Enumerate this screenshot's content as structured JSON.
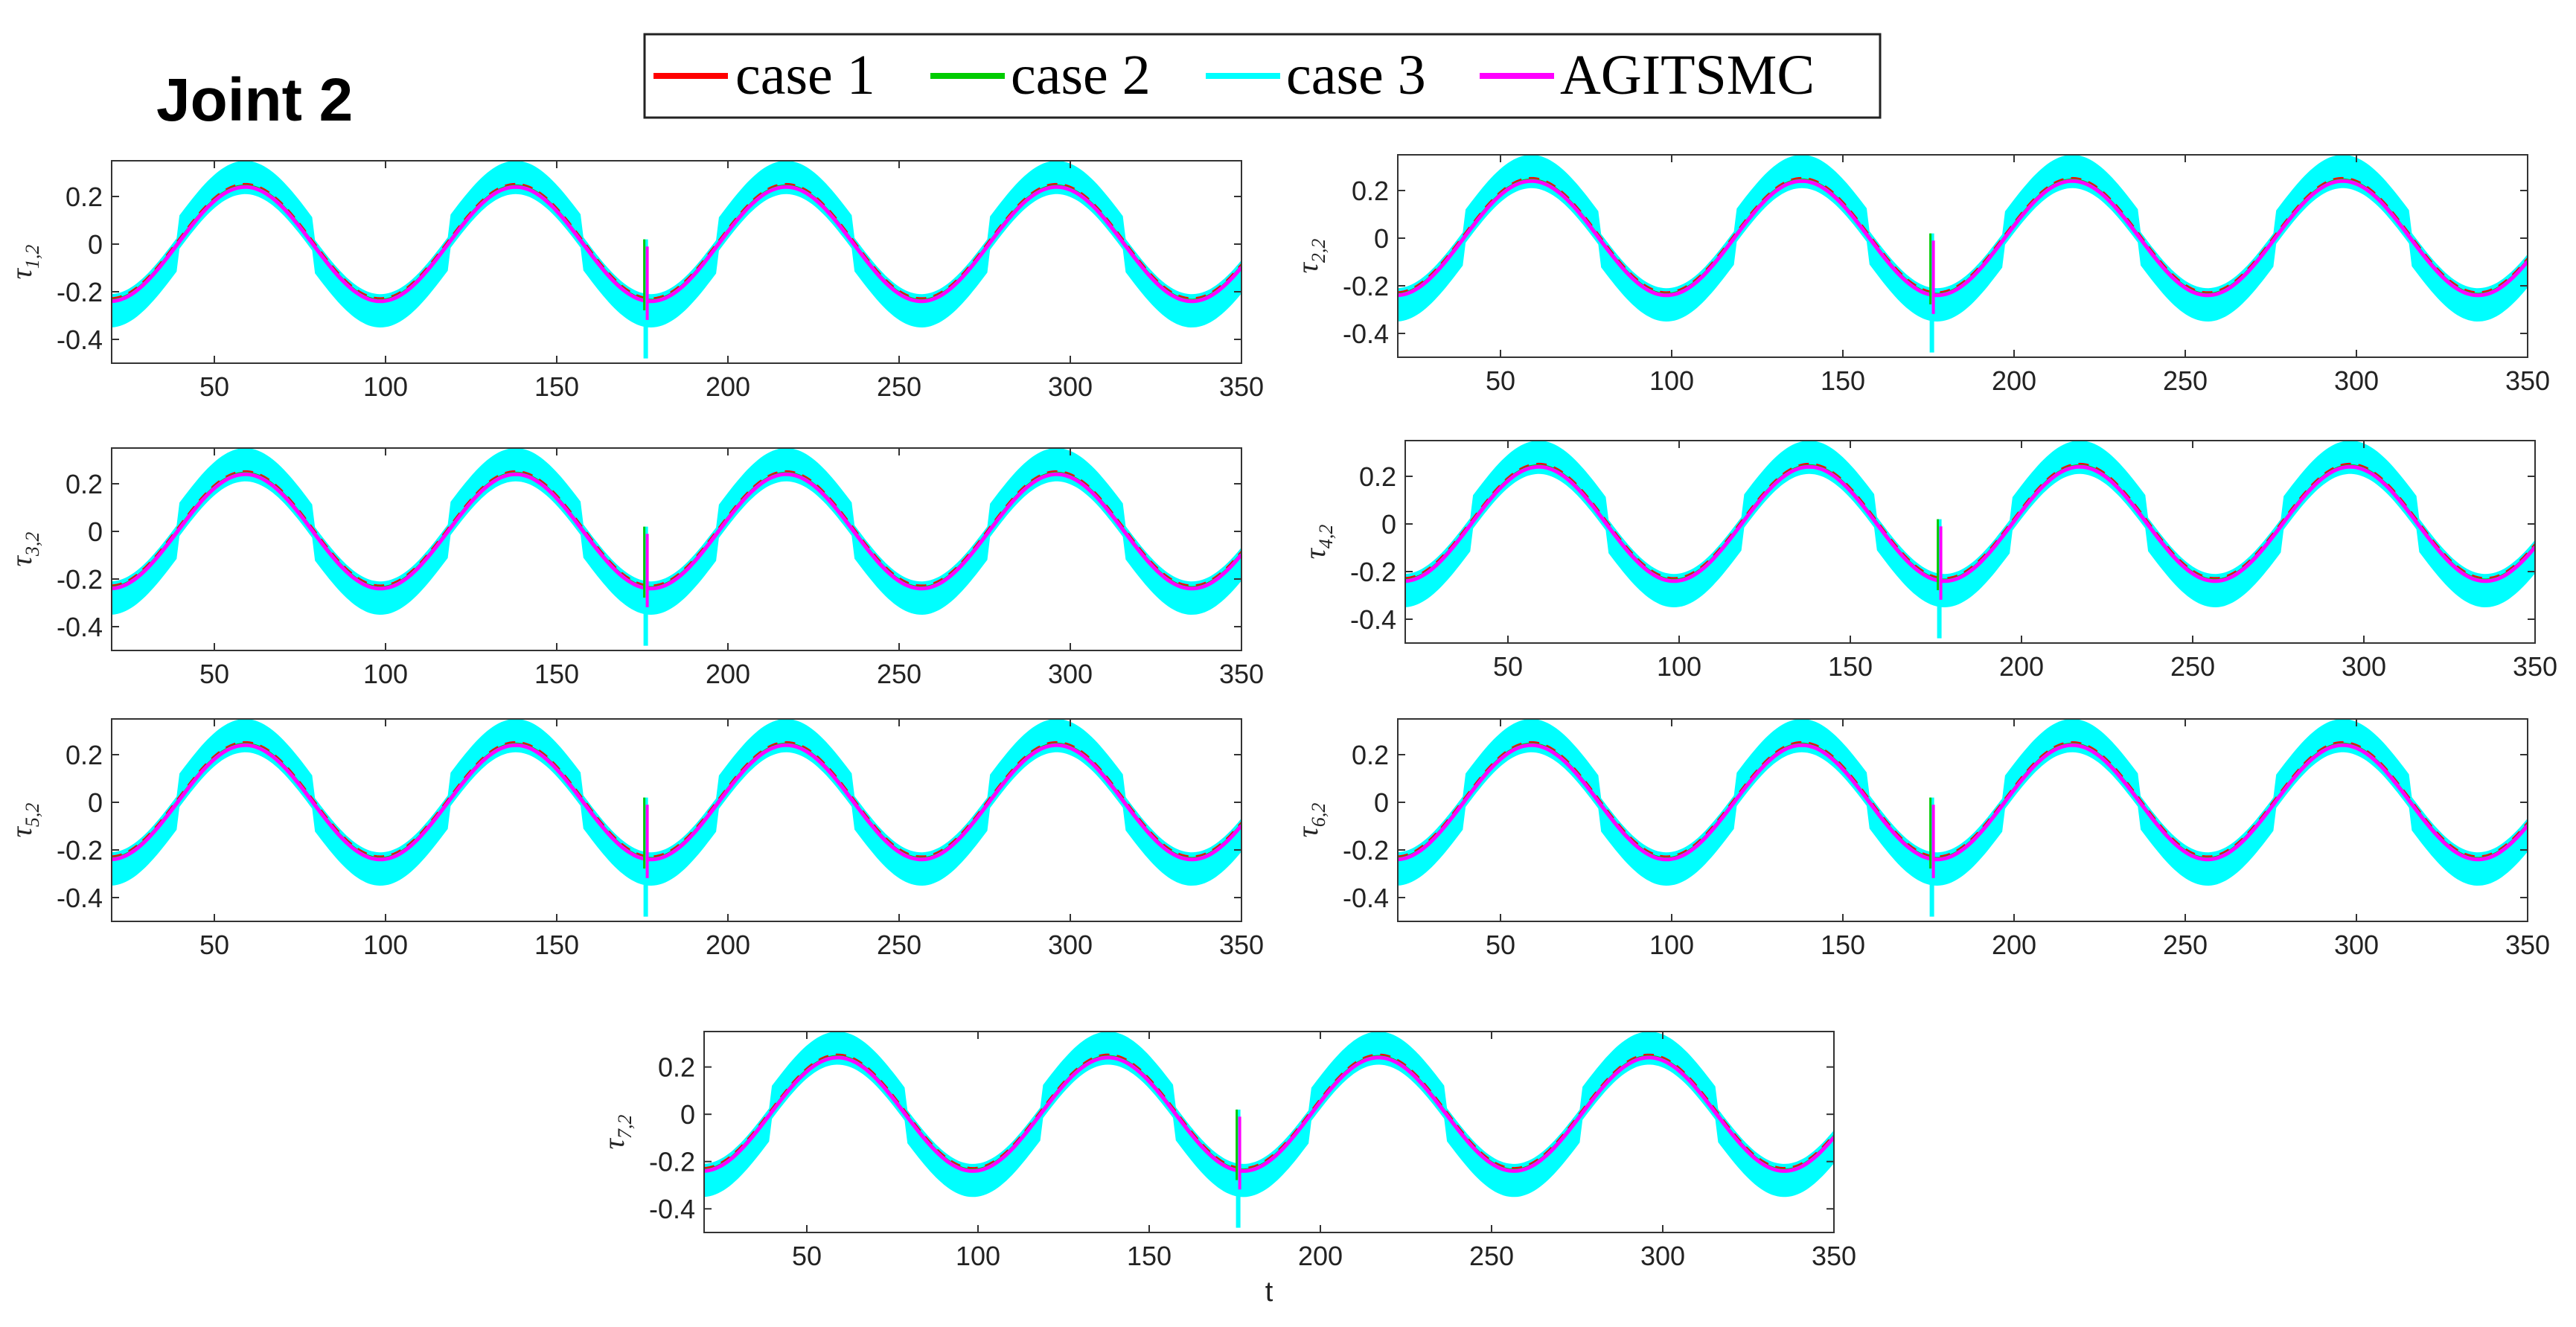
{
  "figure_title": "Joint 2",
  "legend": [
    {
      "label": "case 1",
      "color": "#ff0000"
    },
    {
      "label": "case 2",
      "color": "#00cc00"
    },
    {
      "label": "case 3",
      "color": "#00ffff"
    },
    {
      "label": "AGITSMC",
      "color": "#ff00ff"
    }
  ],
  "xlabel": "t",
  "chart_data": [
    {
      "type": "line",
      "ylabel": "τ",
      "ylabel_sub": "1,2",
      "xlim": [
        20,
        350
      ],
      "ylim": [
        -0.5,
        0.35
      ],
      "xticks": [
        50,
        100,
        150,
        200,
        250,
        300,
        350
      ],
      "yticks": [
        -0.4,
        -0.2,
        0,
        0.2
      ],
      "period": 79,
      "phase_peak_t": 59,
      "amplitude": 0.24,
      "band_halfwidth": 0.11,
      "spike_t": 176,
      "spike_max": 0.02,
      "spike_min": -0.48,
      "series": [
        "case 1",
        "case 2",
        "case 3",
        "AGITSMC"
      ]
    },
    {
      "type": "line",
      "ylabel": "τ",
      "ylabel_sub": "2,2",
      "xlim": [
        20,
        350
      ],
      "ylim": [
        -0.5,
        0.35
      ],
      "xticks": [
        50,
        100,
        150,
        200,
        250,
        300,
        350
      ],
      "yticks": [
        -0.4,
        -0.2,
        0,
        0.2
      ],
      "period": 79,
      "phase_peak_t": 59,
      "amplitude": 0.24,
      "band_halfwidth": 0.11,
      "spike_t": 176,
      "spike_max": 0.02,
      "spike_min": -0.48,
      "series": [
        "case 1",
        "case 2",
        "case 3",
        "AGITSMC"
      ]
    },
    {
      "type": "line",
      "ylabel": "τ",
      "ylabel_sub": "3,2",
      "xlim": [
        20,
        350
      ],
      "ylim": [
        -0.5,
        0.35
      ],
      "xticks": [
        50,
        100,
        150,
        200,
        250,
        300,
        350
      ],
      "yticks": [
        -0.4,
        -0.2,
        0,
        0.2
      ],
      "period": 79,
      "phase_peak_t": 59,
      "amplitude": 0.24,
      "band_halfwidth": 0.11,
      "spike_t": 176,
      "spike_max": 0.02,
      "spike_min": -0.48,
      "series": [
        "case 1",
        "case 2",
        "case 3",
        "AGITSMC"
      ]
    },
    {
      "type": "line",
      "ylabel": "τ",
      "ylabel_sub": "4,2",
      "xlim": [
        20,
        350
      ],
      "ylim": [
        -0.5,
        0.35
      ],
      "xticks": [
        50,
        100,
        150,
        200,
        250,
        300,
        350
      ],
      "yticks": [
        -0.4,
        -0.2,
        0,
        0.2
      ],
      "period": 79,
      "phase_peak_t": 59,
      "amplitude": 0.24,
      "band_halfwidth": 0.11,
      "spike_t": 176,
      "spike_max": 0.02,
      "spike_min": -0.48,
      "series": [
        "case 1",
        "case 2",
        "case 3",
        "AGITSMC"
      ]
    },
    {
      "type": "line",
      "ylabel": "τ",
      "ylabel_sub": "5,2",
      "xlim": [
        20,
        350
      ],
      "ylim": [
        -0.5,
        0.35
      ],
      "xticks": [
        50,
        100,
        150,
        200,
        250,
        300,
        350
      ],
      "yticks": [
        -0.4,
        -0.2,
        0,
        0.2
      ],
      "period": 79,
      "phase_peak_t": 59,
      "amplitude": 0.24,
      "band_halfwidth": 0.11,
      "spike_t": 176,
      "spike_max": 0.02,
      "spike_min": -0.48,
      "series": [
        "case 1",
        "case 2",
        "case 3",
        "AGITSMC"
      ]
    },
    {
      "type": "line",
      "ylabel": "τ",
      "ylabel_sub": "6,2",
      "xlim": [
        20,
        350
      ],
      "ylim": [
        -0.5,
        0.35
      ],
      "xticks": [
        50,
        100,
        150,
        200,
        250,
        300,
        350
      ],
      "yticks": [
        -0.4,
        -0.2,
        0,
        0.2
      ],
      "period": 79,
      "phase_peak_t": 59,
      "amplitude": 0.24,
      "band_halfwidth": 0.11,
      "spike_t": 176,
      "spike_max": 0.02,
      "spike_min": -0.48,
      "series": [
        "case 1",
        "case 2",
        "case 3",
        "AGITSMC"
      ]
    },
    {
      "type": "line",
      "ylabel": "τ",
      "ylabel_sub": "7,2",
      "xlim": [
        20,
        350
      ],
      "ylim": [
        -0.5,
        0.35
      ],
      "xticks": [
        50,
        100,
        150,
        200,
        250,
        300,
        350
      ],
      "yticks": [
        -0.4,
        -0.2,
        0,
        0.2
      ],
      "period": 79,
      "phase_peak_t": 59,
      "amplitude": 0.24,
      "band_halfwidth": 0.11,
      "spike_t": 176,
      "spike_max": 0.02,
      "spike_min": -0.48,
      "series": [
        "case 1",
        "case 2",
        "case 3",
        "AGITSMC"
      ]
    }
  ]
}
